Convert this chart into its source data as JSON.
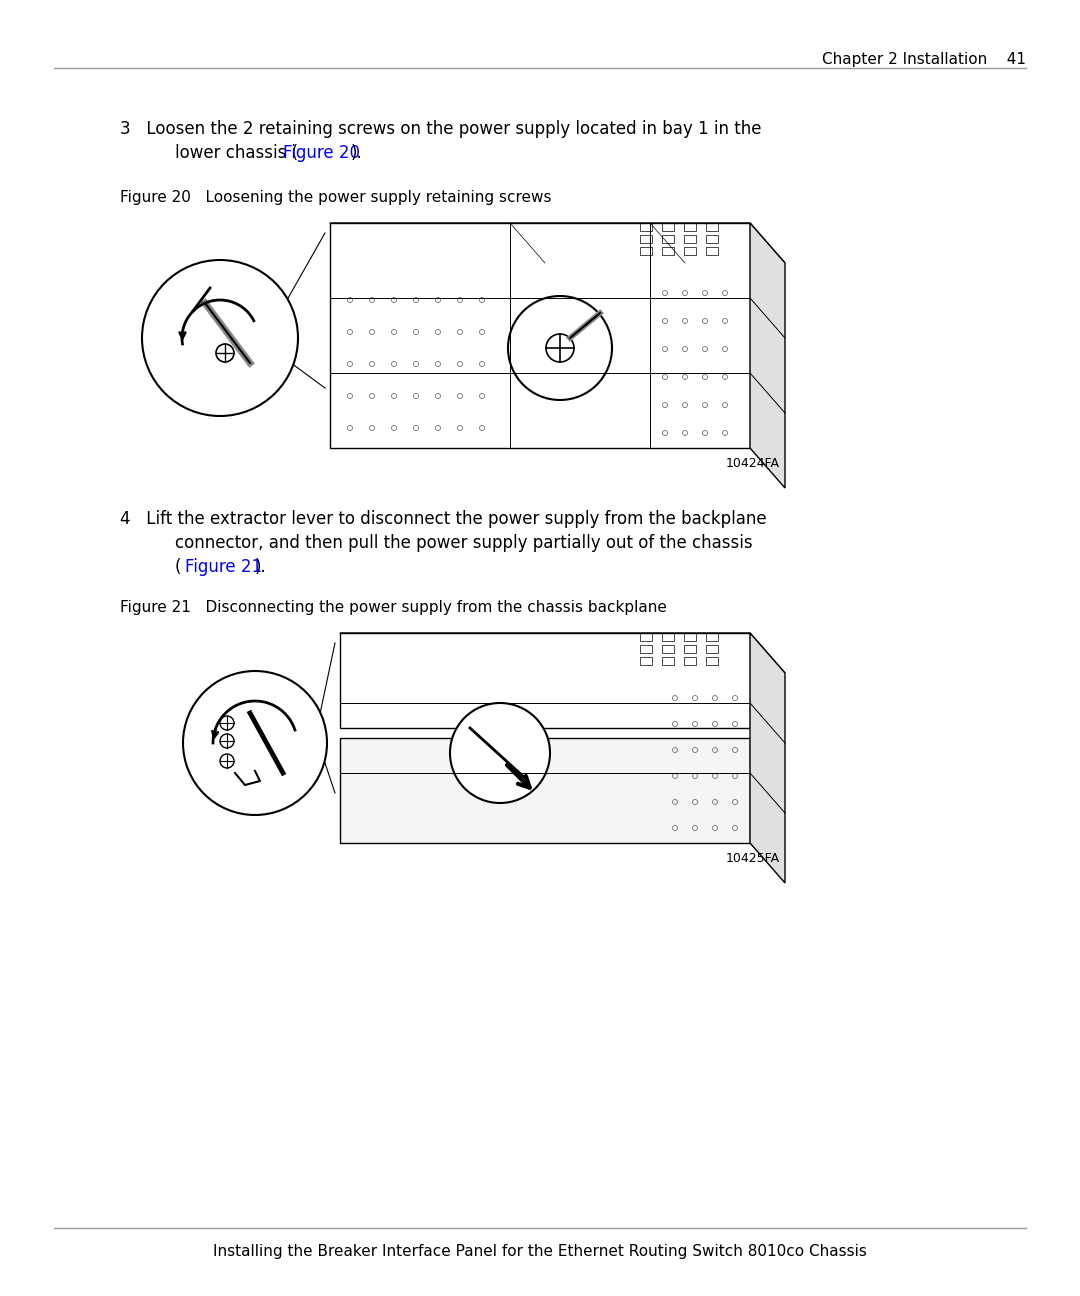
{
  "page_header_text": "Chapter 2 Installation    41",
  "page_footer_text": "Installing the Breaker Interface Panel for the Ethernet Routing Switch 8010co Chassis",
  "step3_text_part1": "3   Loosen the 2 retaining screws on the power supply located in bay 1 in the",
  "step3_text_part2": "lower chassis (",
  "step3_link": "Figure 20",
  "step3_text_part3": ").",
  "figure20_label": "Figure 20   Loosening the power supply retaining screws",
  "figure20_code": "10424FA",
  "step4_text_part1": "4   Lift the extractor lever to disconnect the power supply from the backplane",
  "step4_text_part2": "connector, and then pull the power supply partially out of the chassis",
  "step4_text_part3": "(",
  "step4_link": "Figure 21",
  "step4_text_part4": ").",
  "figure21_label": "Figure 21   Disconnecting the power supply from the chassis backplane",
  "figure21_code": "10425FA",
  "bg_color": "#ffffff",
  "text_color": "#000000",
  "link_color": "#0000ff",
  "header_line_color": "#999999",
  "footer_line_color": "#999999",
  "header_fontsize": 11,
  "body_fontsize": 12,
  "figure_label_fontsize": 11,
  "code_fontsize": 9
}
